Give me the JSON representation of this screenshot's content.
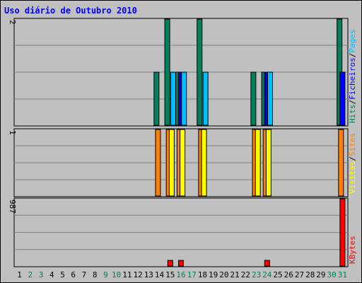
{
  "chart_data": {
    "type": "bar",
    "title": "Uso diário de Outubro 2010",
    "days": [
      "1",
      "2",
      "3",
      "4",
      "5",
      "6",
      "7",
      "8",
      "9",
      "10",
      "11",
      "12",
      "13",
      "14",
      "15",
      "16",
      "17",
      "18",
      "19",
      "20",
      "21",
      "22",
      "23",
      "24",
      "25",
      "26",
      "27",
      "28",
      "29",
      "30",
      "31"
    ],
    "weekend_days": [
      2,
      3,
      9,
      10,
      16,
      17,
      23,
      24,
      30,
      31
    ],
    "panels": [
      {
        "id": "hits",
        "scale_label": "2",
        "ymax": 2,
        "legend": [
          {
            "label": "Hits",
            "color": "#00805c"
          },
          {
            "label": "/",
            "color": "#000000"
          },
          {
            "label": "Ficheiros",
            "color": "#0000ff"
          },
          {
            "label": "/",
            "color": "#000000"
          },
          {
            "label": "Pages",
            "color": "#00bfff"
          }
        ],
        "series": [
          {
            "name": "Hits",
            "color": "#00805c",
            "values": [
              0,
              0,
              0,
              0,
              0,
              0,
              0,
              0,
              0,
              0,
              0,
              0,
              0,
              1,
              2,
              1,
              0,
              2,
              0,
              0,
              0,
              0,
              1,
              1,
              0,
              0,
              0,
              0,
              0,
              0,
              2
            ]
          },
          {
            "name": "Ficheiros",
            "color": "#0000ff",
            "values": [
              0,
              0,
              0,
              0,
              0,
              0,
              0,
              0,
              0,
              0,
              0,
              0,
              0,
              0,
              0,
              1,
              0,
              0,
              0,
              0,
              0,
              0,
              0,
              1,
              0,
              0,
              0,
              0,
              0,
              0,
              1
            ]
          },
          {
            "name": "Pages",
            "color": "#00bfff",
            "values": [
              0,
              0,
              0,
              0,
              0,
              0,
              0,
              0,
              0,
              0,
              0,
              0,
              0,
              0,
              1,
              1,
              0,
              1,
              0,
              0,
              0,
              0,
              0,
              1,
              0,
              0,
              0,
              0,
              0,
              0,
              0
            ]
          }
        ]
      },
      {
        "id": "visits",
        "scale_label": "1",
        "ymax": 1,
        "legend": [
          {
            "label": "Visitas",
            "color": "#ffff00"
          },
          {
            "label": "/",
            "color": "#000000"
          },
          {
            "label": "Sites",
            "color": "#ff8000"
          }
        ],
        "series": [
          {
            "name": "Sites",
            "color": "#ff8000",
            "values": [
              0,
              0,
              0,
              0,
              0,
              0,
              0,
              0,
              0,
              0,
              0,
              0,
              0,
              1,
              1,
              1,
              0,
              1,
              0,
              0,
              0,
              0,
              1,
              1,
              0,
              0,
              0,
              0,
              0,
              0,
              1
            ]
          },
          {
            "name": "Visitas",
            "color": "#ffff00",
            "values": [
              0,
              0,
              0,
              0,
              0,
              0,
              0,
              0,
              0,
              0,
              0,
              0,
              0,
              0,
              1,
              1,
              0,
              1,
              0,
              0,
              0,
              0,
              1,
              1,
              0,
              0,
              0,
              0,
              0,
              0,
              0
            ]
          }
        ]
      },
      {
        "id": "kbytes",
        "scale_label": "987",
        "ymax": 987,
        "legend": [
          {
            "label": "KBytes",
            "color": "#ff0000"
          }
        ],
        "series": [
          {
            "name": "KBytes",
            "color": "#ff0000",
            "values": [
              0,
              0,
              0,
              0,
              0,
              0,
              0,
              0,
              0,
              0,
              0,
              0,
              0,
              0,
              60,
              60,
              0,
              0,
              0,
              0,
              0,
              0,
              0,
              60,
              0,
              0,
              0,
              0,
              0,
              0,
              987
            ]
          }
        ]
      }
    ],
    "grid": true
  }
}
